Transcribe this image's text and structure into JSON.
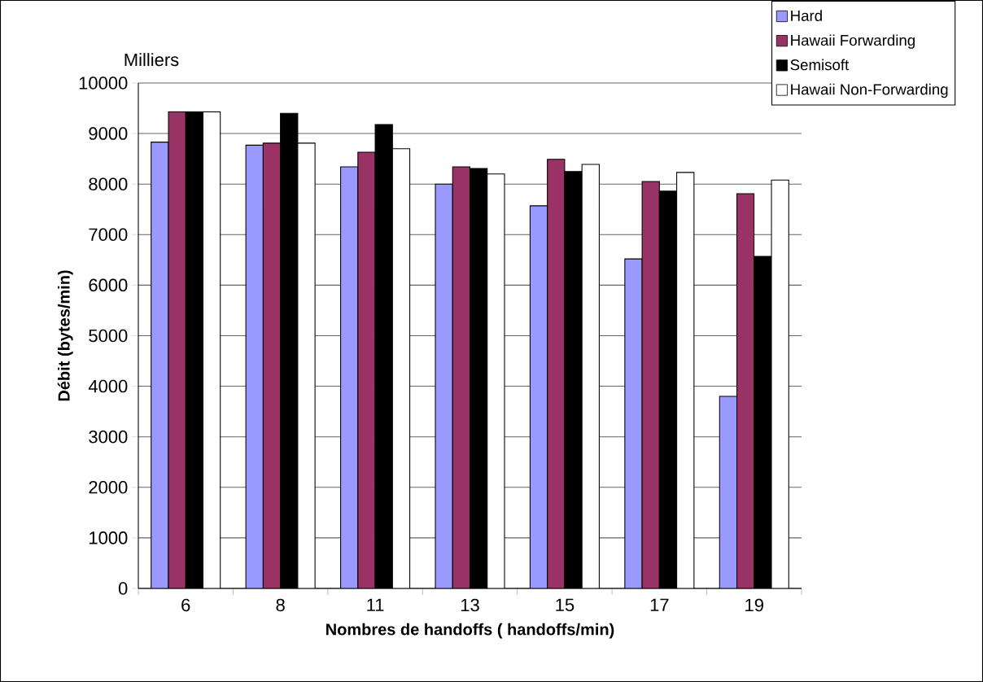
{
  "chart_data": {
    "type": "bar",
    "xlabel": "Nombres de handoffs ( handoffs/min)",
    "ylabel": "Débit (bytes/min)",
    "annotations": [
      "Milliers"
    ],
    "categories": [
      "6",
      "8",
      "11",
      "13",
      "15",
      "17",
      "19"
    ],
    "series": [
      {
        "name": "Hard",
        "color": "#9999ff",
        "values": [
          8830,
          8770,
          8340,
          8000,
          7570,
          6520,
          3800
        ]
      },
      {
        "name": "Hawaii Forwarding",
        "color": "#993366",
        "values": [
          9430,
          8810,
          8630,
          8340,
          8490,
          8050,
          7810
        ]
      },
      {
        "name": "Semisoft",
        "color": "#000000",
        "values": [
          9430,
          9400,
          9180,
          8310,
          8250,
          7860,
          6570
        ]
      },
      {
        "name": "Hawaii Non-Forwarding",
        "color": "#ffffff",
        "values": [
          9430,
          8810,
          8700,
          8200,
          8390,
          8230,
          8080
        ]
      }
    ],
    "ylim": [
      0,
      10000
    ],
    "yticks": [
      0,
      1000,
      2000,
      3000,
      4000,
      5000,
      6000,
      7000,
      8000,
      9000,
      10000
    ],
    "grid": "y",
    "legend": "top right"
  }
}
